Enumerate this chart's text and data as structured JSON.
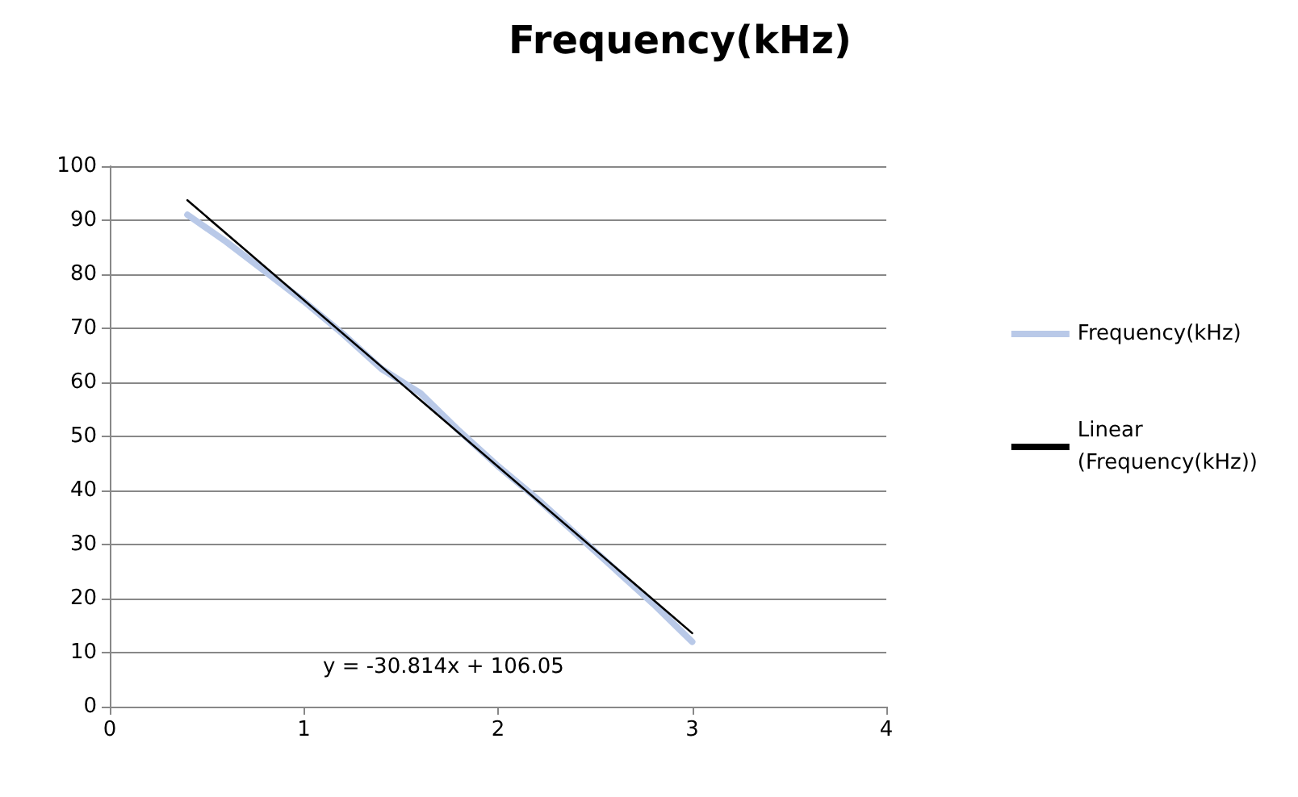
{
  "chart_data": {
    "type": "line",
    "title": "Frequency(kHz)",
    "series": [
      {
        "name": "Frequency(kHz)",
        "color": "#b9c9e8",
        "x": [
          0.4,
          0.6,
          0.8,
          1.0,
          1.2,
          1.4,
          1.6,
          1.8,
          2.0,
          2.2,
          2.4,
          2.6,
          2.8,
          3.0
        ],
        "values": [
          91,
          86,
          80.5,
          75,
          69,
          62.5,
          58,
          51,
          44.5,
          38.5,
          32,
          25.5,
          19,
          12
        ]
      },
      {
        "name": "Linear (Frequency(kHz))",
        "color": "#000000",
        "x": [
          0.4,
          3.0
        ],
        "values": [
          93.7,
          13.6
        ]
      }
    ],
    "xlim": [
      0,
      4
    ],
    "xticks": [
      0,
      1,
      2,
      3,
      4
    ],
    "ylim": [
      0,
      100
    ],
    "yticks": [
      0,
      10,
      20,
      30,
      40,
      50,
      60,
      70,
      80,
      90,
      100
    ],
    "annotations": [
      "y = -30.814x + 106.05"
    ],
    "grid": "y",
    "legend": "right",
    "marker": "none",
    "line_style": "solid"
  }
}
